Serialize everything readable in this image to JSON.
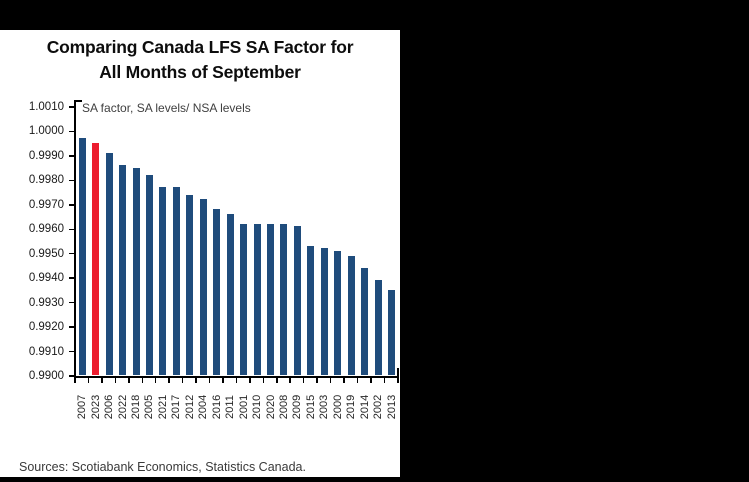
{
  "chart_data": {
    "type": "bar",
    "title": "Comparing Canada LFS SA Factor for All Months of September",
    "title_lines": [
      "Comparing Canada LFS SA Factor for",
      "All Months of September"
    ],
    "annotation": "SA factor, SA levels/ NSA levels",
    "categories": [
      "2007",
      "2023",
      "2006",
      "2022",
      "2018",
      "2005",
      "2021",
      "2017",
      "2012",
      "2004",
      "2016",
      "2011",
      "2001",
      "2010",
      "2020",
      "2008",
      "2009",
      "2015",
      "2003",
      "2000",
      "2019",
      "2014",
      "2002",
      "2013"
    ],
    "values": [
      0.9997,
      0.9995,
      0.9991,
      0.9986,
      0.9985,
      0.9982,
      0.9977,
      0.9977,
      0.9974,
      0.9972,
      0.9968,
      0.9966,
      0.9962,
      0.9962,
      0.9962,
      0.9962,
      0.9961,
      0.9953,
      0.9952,
      0.9951,
      0.9949,
      0.9944,
      0.9939,
      0.9935
    ],
    "highlight_index": 1,
    "highlight_category": "2023",
    "ylim": [
      0.99,
      1.001
    ],
    "ytick_step": 0.001,
    "ytick_labels": [
      "1.0010",
      "1.0000",
      "0.9990",
      "0.9980",
      "0.9970",
      "0.9960",
      "0.9950",
      "0.9940",
      "0.9930",
      "0.9920",
      "0.9910",
      "0.9900"
    ],
    "grid": false,
    "legend": "none",
    "colors": {
      "bar": "#1f4c7c",
      "highlight": "#ec1c2e",
      "axis": "#000000",
      "card_bg": "#ffffff",
      "page_bg": "#000000",
      "title_text": "#0d0d0d"
    }
  },
  "footer": {
    "sources_label": "Sources: Scotiabank Economics, Statistics Canada."
  }
}
